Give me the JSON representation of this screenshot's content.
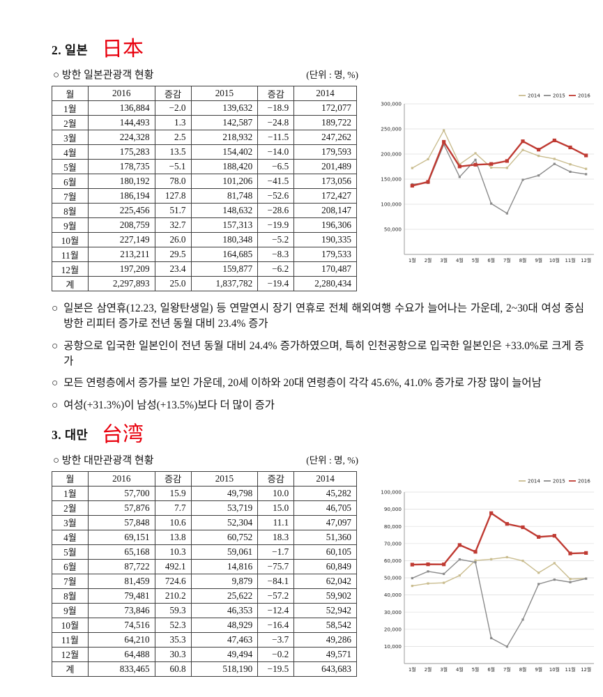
{
  "bullet_marker": "○",
  "japan": {
    "heading": "2. 일본",
    "annotation": "日本",
    "subtitle": "○ 방한 일본관광객 현황",
    "unit_label": "(단위 : 명, %)",
    "table": {
      "headers": [
        "월",
        "2016",
        "증감",
        "2015",
        "증감",
        "2014"
      ],
      "rows": [
        [
          "1월",
          "136,884",
          "−2.0",
          "139,632",
          "−18.9",
          "172,077"
        ],
        [
          "2월",
          "144,493",
          "1.3",
          "142,587",
          "−24.8",
          "189,722"
        ],
        [
          "3월",
          "224,328",
          "2.5",
          "218,932",
          "−11.5",
          "247,262"
        ],
        [
          "4월",
          "175,283",
          "13.5",
          "154,402",
          "−14.0",
          "179,593"
        ],
        [
          "5월",
          "178,735",
          "−5.1",
          "188,420",
          "−6.5",
          "201,489"
        ],
        [
          "6월",
          "180,192",
          "78.0",
          "101,206",
          "−41.5",
          "173,056"
        ],
        [
          "7월",
          "186,194",
          "127.8",
          "81,748",
          "−52.6",
          "172,427"
        ],
        [
          "8월",
          "225,456",
          "51.7",
          "148,632",
          "−28.6",
          "208,147"
        ],
        [
          "9월",
          "208,759",
          "32.7",
          "157,313",
          "−19.9",
          "196,306"
        ],
        [
          "10월",
          "227,149",
          "26.0",
          "180,348",
          "−5.2",
          "190,335"
        ],
        [
          "11월",
          "213,211",
          "29.5",
          "164,685",
          "−8.3",
          "179,533"
        ],
        [
          "12월",
          "197,209",
          "23.4",
          "159,877",
          "−6.2",
          "170,487"
        ],
        [
          "계",
          "2,297,893",
          "25.0",
          "1,837,782",
          "−19.4",
          "2,280,434"
        ]
      ]
    },
    "bullets": [
      "일본은 삼연휴(12.23, 일왕탄생일) 등 연말연시 장기 연휴로 전체 해외여행 수요가 늘어나는 가운데, 2~30대 여성 중심 방한 리피터 증가로 전년 동월 대비 23.4% 증가",
      "공항으로 입국한 일본인이 전년 동월 대비 24.4% 증가하였으며, 특히 인천공항으로 입국한 일본인은 +33.0%로 크게 증가",
      "모든 연령층에서 증가를 보인 가운데, 20세 이하와 20대 연령층이 각각 45.6%, 41.0% 증가로 가장 많이 늘어남",
      "여성(+31.3%)이 남성(+13.5%)보다 더 많이 증가"
    ]
  },
  "taiwan": {
    "heading": "3. 대만",
    "annotation": "台湾",
    "subtitle": "○ 방한 대만관광객 현황",
    "unit_label": "(단위 : 명, %)",
    "table": {
      "headers": [
        "월",
        "2016",
        "증감",
        "2015",
        "증감",
        "2014"
      ],
      "rows": [
        [
          "1월",
          "57,700",
          "15.9",
          "49,798",
          "10.0",
          "45,282"
        ],
        [
          "2월",
          "57,876",
          "7.7",
          "53,719",
          "15.0",
          "46,705"
        ],
        [
          "3월",
          "57,848",
          "10.6",
          "52,304",
          "11.1",
          "47,097"
        ],
        [
          "4월",
          "69,151",
          "13.8",
          "60,752",
          "18.3",
          "51,360"
        ],
        [
          "5월",
          "65,168",
          "10.3",
          "59,061",
          "−1.7",
          "60,105"
        ],
        [
          "6월",
          "87,722",
          "492.1",
          "14,816",
          "−75.7",
          "60,849"
        ],
        [
          "7월",
          "81,459",
          "724.6",
          "9,879",
          "−84.1",
          "62,042"
        ],
        [
          "8월",
          "79,481",
          "210.2",
          "25,622",
          "−57.2",
          "59,902"
        ],
        [
          "9월",
          "73,846",
          "59.3",
          "46,353",
          "−12.4",
          "52,942"
        ],
        [
          "10월",
          "74,516",
          "52.3",
          "48,929",
          "−16.4",
          "58,542"
        ],
        [
          "11월",
          "64,210",
          "35.3",
          "47,463",
          "−3.7",
          "49,286"
        ],
        [
          "12월",
          "64,488",
          "30.3",
          "49,494",
          "−0.2",
          "49,571"
        ],
        [
          "계",
          "833,465",
          "60.8",
          "518,190",
          "−19.5",
          "643,683"
        ]
      ]
    }
  },
  "colors": {
    "annotation_red": "#e8000d",
    "series_2014": "#c9bc8e",
    "series_2015": "#8a8a8a",
    "series_2016": "#bf3a32"
  },
  "chart_data": [
    {
      "type": "line",
      "categories": [
        "1월",
        "2월",
        "3월",
        "4월",
        "5월",
        "6월",
        "7월",
        "8월",
        "9월",
        "10월",
        "11월",
        "12월"
      ],
      "series": [
        {
          "name": "2014",
          "color": "#c9bc8e",
          "emphasis": false,
          "values": [
            172077,
            189722,
            247262,
            179593,
            201489,
            173056,
            172427,
            208147,
            196306,
            190335,
            179533,
            170487
          ]
        },
        {
          "name": "2015",
          "color": "#8a8a8a",
          "emphasis": false,
          "values": [
            139632,
            142587,
            218932,
            154402,
            188420,
            101206,
            81748,
            148632,
            157313,
            180348,
            164685,
            159877
          ]
        },
        {
          "name": "2016",
          "color": "#bf3a32",
          "emphasis": true,
          "values": [
            136884,
            144493,
            224328,
            175283,
            178735,
            180192,
            186194,
            225456,
            208759,
            227149,
            213211,
            197209
          ]
        }
      ],
      "ylim": [
        0,
        300000
      ],
      "ytick_step": 50000,
      "grid": true,
      "legend_position": "top-right"
    },
    {
      "type": "line",
      "categories": [
        "1월",
        "2월",
        "3월",
        "4월",
        "5월",
        "6월",
        "7월",
        "8월",
        "9월",
        "10월",
        "11월",
        "12월"
      ],
      "series": [
        {
          "name": "2014",
          "color": "#c9bc8e",
          "emphasis": false,
          "values": [
            45282,
            46705,
            47097,
            51360,
            60105,
            60849,
            62042,
            59902,
            52942,
            58542,
            49286,
            49571
          ]
        },
        {
          "name": "2015",
          "color": "#8a8a8a",
          "emphasis": false,
          "values": [
            49798,
            53719,
            52304,
            60752,
            59061,
            14816,
            9879,
            25622,
            46353,
            48929,
            47463,
            49494
          ]
        },
        {
          "name": "2016",
          "color": "#bf3a32",
          "emphasis": true,
          "values": [
            57700,
            57876,
            57848,
            69151,
            65168,
            87722,
            81459,
            79481,
            73846,
            74516,
            64210,
            64488
          ]
        }
      ],
      "ylim": [
        0,
        100000
      ],
      "ytick_step": 10000,
      "grid": true,
      "legend_position": "top-right"
    }
  ]
}
